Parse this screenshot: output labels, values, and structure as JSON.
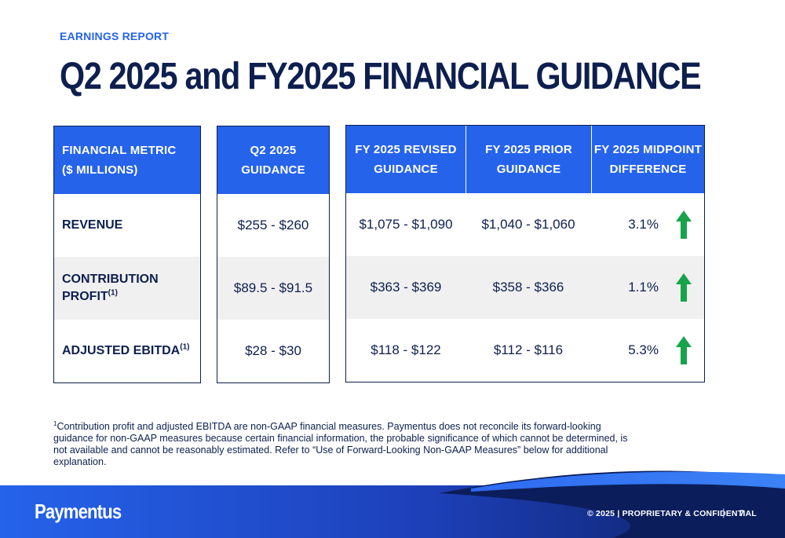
{
  "header": {
    "eyebrow": "EARNINGS REPORT",
    "title": "Q2 2025 and FY2025 FINANCIAL GUIDANCE"
  },
  "table": {
    "metric_header": [
      "FINANCIAL METRIC",
      "($ MILLIONS)"
    ],
    "q2_header": [
      "Q2 2025",
      "GUIDANCE"
    ],
    "fy_headers": [
      [
        "FY 2025  REVISED",
        "GUIDANCE"
      ],
      [
        "FY 2025 PRIOR",
        "GUIDANCE"
      ],
      [
        "FY 2025 MIDPOINT",
        "DIFFERENCE"
      ]
    ],
    "rows": [
      {
        "metric": "REVENUE",
        "metric_line2": "",
        "footnote_mark": "",
        "q2": "$255 - $260",
        "fy_revised": "$1,075 - $1,090",
        "fy_prior": "$1,040 - $1,060",
        "midpoint_diff": "3.1%",
        "trend": "up"
      },
      {
        "metric": "CONTRIBUTION",
        "metric_line2": "PROFIT",
        "footnote_mark": "(1)",
        "q2": "$89.5 - $91.5",
        "fy_revised": "$363 - $369",
        "fy_prior": "$358 - $366",
        "midpoint_diff": "1.1%",
        "trend": "up"
      },
      {
        "metric": "ADJUSTED EBITDA",
        "metric_line2": "",
        "footnote_mark": "(1)",
        "q2": "$28 - $30",
        "fy_revised": "$118 - $122",
        "fy_prior": "$112 - $116",
        "midpoint_diff": "5.3%",
        "trend": "up"
      }
    ],
    "arrow_icon": "arrow-up-icon",
    "arrow_color": "#16a34a"
  },
  "footnote": {
    "mark": "1",
    "text": "Contribution profit and adjusted EBITDA are non-GAAP financial measures. Paymentus does not reconcile its forward-looking guidance for non-GAAP measures because certain financial information, the probable significance of which cannot be determined, is not available and cannot be reasonably estimated. Refer to “Use of Forward-Looking Non-GAAP Measures” below for additional explanation."
  },
  "footer": {
    "brand": "Paymentus",
    "copyright": "© 2025  |  PROPRIETARY & CONFIDENTIAL",
    "separator": "|",
    "page_number": "7"
  },
  "colors": {
    "navy": "#0d1f4f",
    "accent_blue": "#2563eb",
    "row_shade": "#f0f0f0",
    "arrow_green": "#16a34a"
  }
}
